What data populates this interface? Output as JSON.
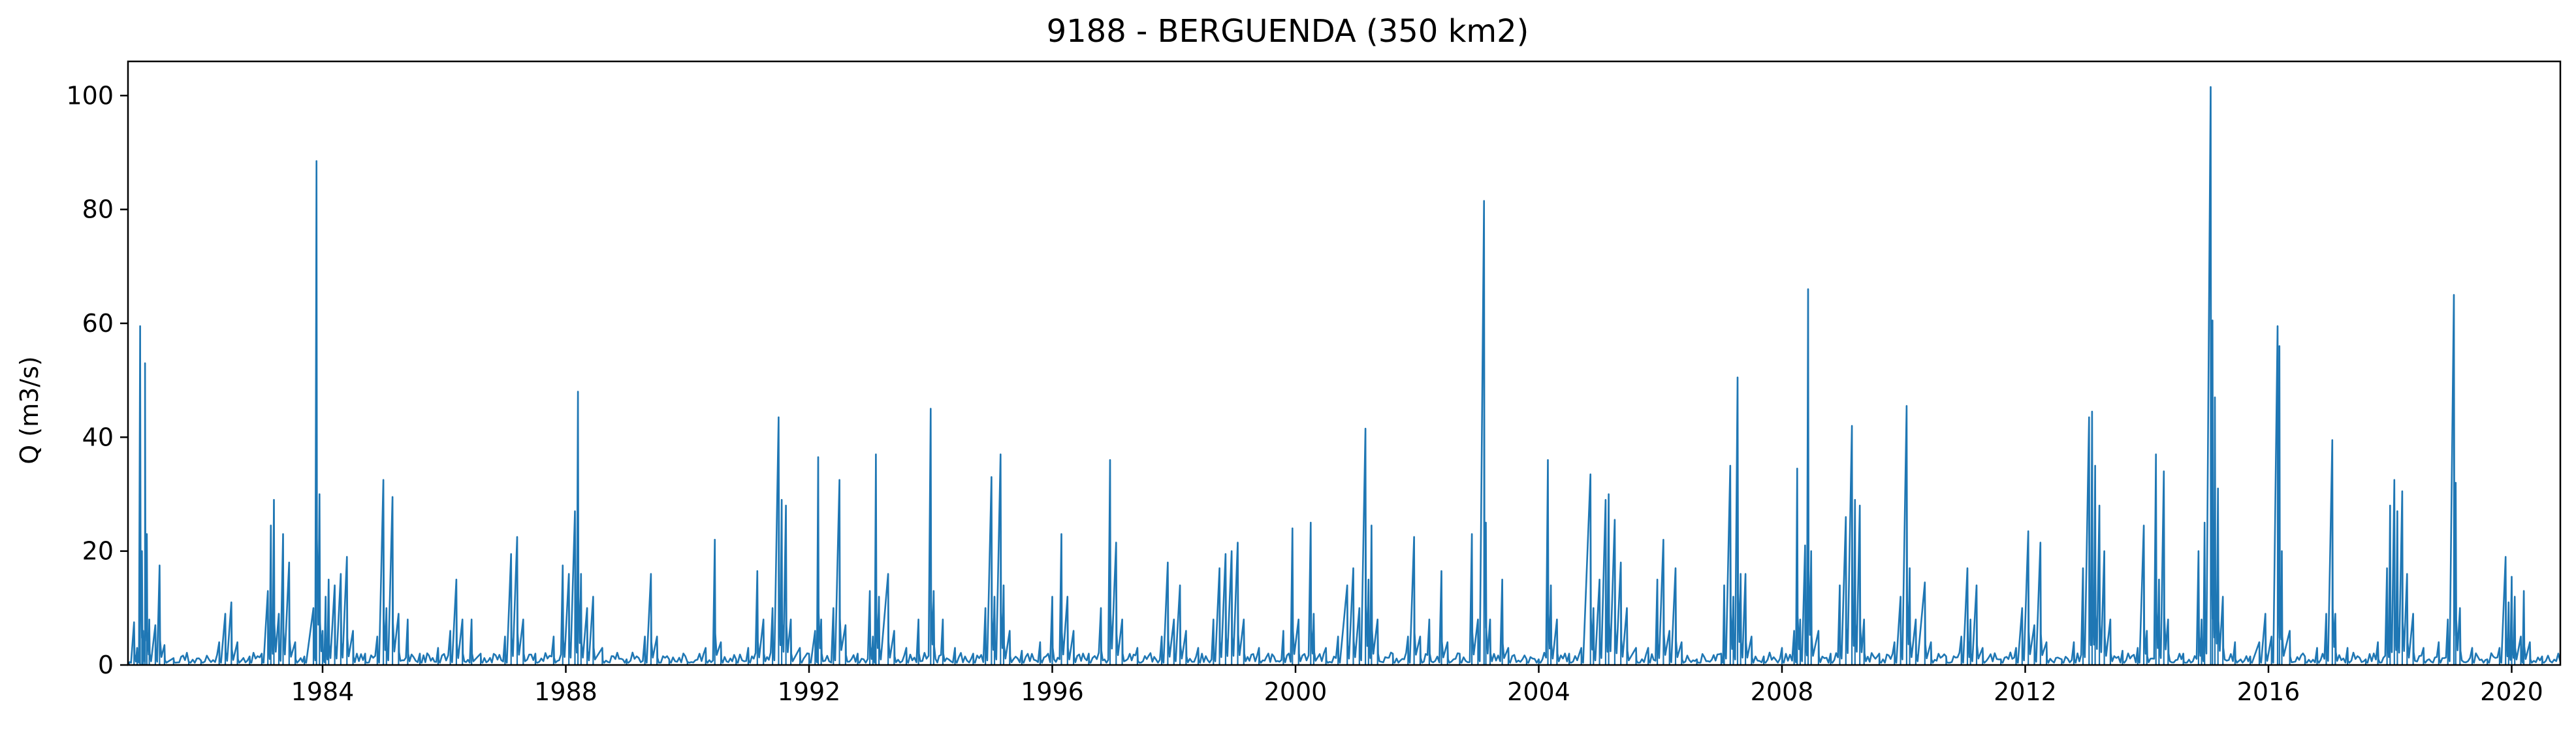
{
  "chart_data": {
    "type": "line",
    "title": "9188 - BERGUENDA (350 km2)",
    "xlabel": "",
    "ylabel": "Q (m3/s)",
    "xlim": [
      1980.8,
      2020.8
    ],
    "ylim": [
      0,
      106
    ],
    "x_ticks": [
      "1984",
      "1988",
      "1992",
      "1996",
      "2000",
      "2004",
      "2008",
      "2012",
      "2016",
      "2020"
    ],
    "y_ticks": [
      "0",
      "20",
      "40",
      "60",
      "80",
      "100"
    ],
    "series_color": "#1f77b4",
    "grid": false,
    "legend": "none",
    "series": [
      {
        "sampling": "approximate peak flows read from the hydrograph; baseflow between peaks near 0–3 m3/s",
        "points": [
          [
            1980.82,
            0.4
          ],
          [
            1980.9,
            7.5
          ],
          [
            1980.95,
            3.0
          ],
          [
            1981.0,
            59.5
          ],
          [
            1981.03,
            20.0
          ],
          [
            1981.05,
            6.0
          ],
          [
            1981.08,
            53.0
          ],
          [
            1981.11,
            23.0
          ],
          [
            1981.15,
            8.0
          ],
          [
            1981.25,
            7.0
          ],
          [
            1981.32,
            17.5
          ],
          [
            1981.4,
            3.5
          ],
          [
            1981.55,
            1.2
          ],
          [
            1981.8,
            0.5
          ],
          [
            1982.0,
            0.8
          ],
          [
            1982.3,
            4.0
          ],
          [
            1982.4,
            9.0
          ],
          [
            1982.5,
            11.0
          ],
          [
            1982.6,
            4.0
          ],
          [
            1982.8,
            1.5
          ],
          [
            1983.0,
            2.0
          ],
          [
            1983.1,
            13.0
          ],
          [
            1983.15,
            24.5
          ],
          [
            1983.2,
            29.0
          ],
          [
            1983.28,
            9.0
          ],
          [
            1983.35,
            23.0
          ],
          [
            1983.45,
            18.0
          ],
          [
            1983.55,
            4.0
          ],
          [
            1983.7,
            1.5
          ],
          [
            1983.85,
            10.0
          ],
          [
            1983.9,
            88.5
          ],
          [
            1983.95,
            30.0
          ],
          [
            1984.0,
            6.0
          ],
          [
            1984.05,
            12.0
          ],
          [
            1984.1,
            15.0
          ],
          [
            1984.2,
            14.0
          ],
          [
            1984.3,
            16.0
          ],
          [
            1984.4,
            19.0
          ],
          [
            1984.5,
            6.0
          ],
          [
            1984.7,
            2.0
          ],
          [
            1984.9,
            5.0
          ],
          [
            1985.0,
            32.5
          ],
          [
            1985.05,
            10.0
          ],
          [
            1985.15,
            29.5
          ],
          [
            1985.25,
            9.0
          ],
          [
            1985.4,
            8.0
          ],
          [
            1985.6,
            2.0
          ],
          [
            1985.9,
            3.0
          ],
          [
            1986.1,
            6.0
          ],
          [
            1986.2,
            15.0
          ],
          [
            1986.3,
            8.0
          ],
          [
            1986.45,
            8.0
          ],
          [
            1986.6,
            2.0
          ],
          [
            1987.0,
            5.0
          ],
          [
            1987.1,
            19.5
          ],
          [
            1987.2,
            22.5
          ],
          [
            1987.3,
            8.0
          ],
          [
            1987.5,
            2.0
          ],
          [
            1987.8,
            5.0
          ],
          [
            1987.95,
            17.5
          ],
          [
            1988.05,
            16.0
          ],
          [
            1988.15,
            27.0
          ],
          [
            1988.2,
            48.0
          ],
          [
            1988.25,
            16.0
          ],
          [
            1988.35,
            10.0
          ],
          [
            1988.45,
            12.0
          ],
          [
            1988.6,
            3.0
          ],
          [
            1989.0,
            1.0
          ],
          [
            1989.3,
            5.0
          ],
          [
            1989.4,
            16.0
          ],
          [
            1989.5,
            5.0
          ],
          [
            1989.7,
            1.0
          ],
          [
            1990.0,
            0.5
          ],
          [
            1990.3,
            3.0
          ],
          [
            1990.45,
            22.0
          ],
          [
            1990.55,
            4.0
          ],
          [
            1990.8,
            1.0
          ],
          [
            1991.0,
            3.0
          ],
          [
            1991.15,
            16.5
          ],
          [
            1991.25,
            8.0
          ],
          [
            1991.4,
            10.0
          ],
          [
            1991.5,
            43.5
          ],
          [
            1991.55,
            29.0
          ],
          [
            1991.62,
            28.0
          ],
          [
            1991.7,
            8.0
          ],
          [
            1991.85,
            3.0
          ],
          [
            1992.0,
            2.0
          ],
          [
            1992.1,
            6.0
          ],
          [
            1992.15,
            36.5
          ],
          [
            1992.2,
            8.0
          ],
          [
            1992.4,
            10.0
          ],
          [
            1992.5,
            32.5
          ],
          [
            1992.6,
            7.0
          ],
          [
            1992.8,
            2.0
          ],
          [
            1993.0,
            13.0
          ],
          [
            1993.05,
            5.0
          ],
          [
            1993.1,
            37.0
          ],
          [
            1993.15,
            12.0
          ],
          [
            1993.3,
            16.0
          ],
          [
            1993.4,
            6.0
          ],
          [
            1993.6,
            3.0
          ],
          [
            1993.8,
            8.0
          ],
          [
            1994.0,
            45.0
          ],
          [
            1994.05,
            13.0
          ],
          [
            1994.2,
            8.0
          ],
          [
            1994.4,
            3.0
          ],
          [
            1994.7,
            2.0
          ],
          [
            1994.9,
            10.0
          ],
          [
            1995.0,
            33.0
          ],
          [
            1995.05,
            12.0
          ],
          [
            1995.15,
            37.0
          ],
          [
            1995.2,
            14.0
          ],
          [
            1995.3,
            6.0
          ],
          [
            1995.5,
            2.5
          ],
          [
            1995.8,
            4.0
          ],
          [
            1996.0,
            12.0
          ],
          [
            1996.15,
            23.0
          ],
          [
            1996.25,
            12.0
          ],
          [
            1996.35,
            6.0
          ],
          [
            1996.6,
            2.0
          ],
          [
            1996.8,
            10.0
          ],
          [
            1996.95,
            36.0
          ],
          [
            1997.05,
            21.5
          ],
          [
            1997.15,
            8.0
          ],
          [
            1997.4,
            3.0
          ],
          [
            1997.8,
            5.0
          ],
          [
            1997.9,
            18.0
          ],
          [
            1998.0,
            8.0
          ],
          [
            1998.1,
            14.0
          ],
          [
            1998.2,
            6.0
          ],
          [
            1998.4,
            3.0
          ],
          [
            1998.65,
            8.0
          ],
          [
            1998.75,
            17.0
          ],
          [
            1998.85,
            19.5
          ],
          [
            1998.95,
            20.0
          ],
          [
            1999.05,
            21.5
          ],
          [
            1999.15,
            8.0
          ],
          [
            1999.4,
            3.0
          ],
          [
            1999.8,
            6.0
          ],
          [
            1999.95,
            24.0
          ],
          [
            2000.05,
            8.0
          ],
          [
            2000.25,
            25.0
          ],
          [
            2000.3,
            9.0
          ],
          [
            2000.5,
            3.0
          ],
          [
            2000.7,
            5.0
          ],
          [
            2000.85,
            14.0
          ],
          [
            2000.95,
            17.0
          ],
          [
            2001.05,
            10.0
          ],
          [
            2001.15,
            41.5
          ],
          [
            2001.2,
            15.0
          ],
          [
            2001.25,
            24.5
          ],
          [
            2001.35,
            8.0
          ],
          [
            2001.6,
            2.0
          ],
          [
            2001.85,
            5.0
          ],
          [
            2001.95,
            22.5
          ],
          [
            2002.05,
            5.0
          ],
          [
            2002.2,
            8.0
          ],
          [
            2002.4,
            16.5
          ],
          [
            2002.5,
            4.0
          ],
          [
            2002.7,
            2.0
          ],
          [
            2002.9,
            23.0
          ],
          [
            2003.0,
            8.0
          ],
          [
            2003.1,
            81.5
          ],
          [
            2003.13,
            25.0
          ],
          [
            2003.2,
            8.0
          ],
          [
            2003.4,
            15.0
          ],
          [
            2003.5,
            3.0
          ],
          [
            2003.8,
            1.0
          ],
          [
            2004.0,
            1.0
          ],
          [
            2004.15,
            36.0
          ],
          [
            2004.2,
            14.0
          ],
          [
            2004.3,
            8.0
          ],
          [
            2004.5,
            2.0
          ],
          [
            2004.7,
            3.0
          ],
          [
            2004.85,
            33.5
          ],
          [
            2004.9,
            10.0
          ],
          [
            2005.0,
            15.0
          ],
          [
            2005.1,
            29.0
          ],
          [
            2005.15,
            30.0
          ],
          [
            2005.25,
            25.5
          ],
          [
            2005.35,
            18.0
          ],
          [
            2005.45,
            10.0
          ],
          [
            2005.6,
            3.0
          ],
          [
            2005.8,
            3.0
          ],
          [
            2005.95,
            15.0
          ],
          [
            2006.05,
            22.0
          ],
          [
            2006.15,
            6.0
          ],
          [
            2006.25,
            17.0
          ],
          [
            2006.35,
            4.0
          ],
          [
            2006.6,
            1.0
          ],
          [
            2007.0,
            2.0
          ],
          [
            2007.05,
            14.0
          ],
          [
            2007.15,
            35.0
          ],
          [
            2007.2,
            12.0
          ],
          [
            2007.27,
            50.5
          ],
          [
            2007.32,
            16.0
          ],
          [
            2007.4,
            16.0
          ],
          [
            2007.5,
            5.0
          ],
          [
            2007.7,
            1.5
          ],
          [
            2008.0,
            3.0
          ],
          [
            2008.2,
            6.0
          ],
          [
            2008.25,
            34.5
          ],
          [
            2008.3,
            8.0
          ],
          [
            2008.38,
            21.0
          ],
          [
            2008.43,
            66.0
          ],
          [
            2008.48,
            20.0
          ],
          [
            2008.6,
            6.0
          ],
          [
            2008.8,
            2.0
          ],
          [
            2008.95,
            14.0
          ],
          [
            2009.05,
            26.0
          ],
          [
            2009.15,
            42.0
          ],
          [
            2009.2,
            29.0
          ],
          [
            2009.28,
            28.0
          ],
          [
            2009.35,
            8.0
          ],
          [
            2009.6,
            2.0
          ],
          [
            2009.85,
            4.0
          ],
          [
            2009.95,
            12.0
          ],
          [
            2010.05,
            45.5
          ],
          [
            2010.1,
            17.0
          ],
          [
            2010.2,
            8.0
          ],
          [
            2010.35,
            14.5
          ],
          [
            2010.45,
            4.0
          ],
          [
            2010.7,
            1.5
          ],
          [
            2010.95,
            5.0
          ],
          [
            2011.05,
            17.0
          ],
          [
            2011.1,
            8.0
          ],
          [
            2011.2,
            14.0
          ],
          [
            2011.3,
            3.0
          ],
          [
            2011.6,
            1.0
          ],
          [
            2011.85,
            3.0
          ],
          [
            2011.95,
            10.0
          ],
          [
            2012.05,
            23.5
          ],
          [
            2012.15,
            7.0
          ],
          [
            2012.25,
            21.5
          ],
          [
            2012.35,
            4.0
          ],
          [
            2012.6,
            1.0
          ],
          [
            2012.8,
            4.0
          ],
          [
            2012.95,
            17.0
          ],
          [
            2013.05,
            43.5
          ],
          [
            2013.1,
            44.5
          ],
          [
            2013.15,
            35.0
          ],
          [
            2013.22,
            28.0
          ],
          [
            2013.3,
            20.0
          ],
          [
            2013.4,
            8.0
          ],
          [
            2013.6,
            2.5
          ],
          [
            2013.85,
            3.0
          ],
          [
            2013.95,
            24.5
          ],
          [
            2014.0,
            6.0
          ],
          [
            2014.15,
            37.0
          ],
          [
            2014.2,
            15.0
          ],
          [
            2014.28,
            34.0
          ],
          [
            2014.35,
            8.0
          ],
          [
            2014.6,
            2.0
          ],
          [
            2014.85,
            20.0
          ],
          [
            2014.9,
            8.0
          ],
          [
            2014.95,
            25.0
          ],
          [
            2015.05,
            101.5
          ],
          [
            2015.08,
            60.5
          ],
          [
            2015.12,
            47.0
          ],
          [
            2015.17,
            31.0
          ],
          [
            2015.25,
            12.0
          ],
          [
            2015.45,
            4.0
          ],
          [
            2015.7,
            1.5
          ],
          [
            2015.85,
            4.0
          ],
          [
            2015.95,
            9.0
          ],
          [
            2016.05,
            5.0
          ],
          [
            2016.15,
            59.5
          ],
          [
            2016.18,
            56.0
          ],
          [
            2016.22,
            20.0
          ],
          [
            2016.35,
            6.0
          ],
          [
            2016.6,
            1.5
          ],
          [
            2016.8,
            3.0
          ],
          [
            2016.95,
            9.0
          ],
          [
            2017.05,
            39.5
          ],
          [
            2017.1,
            9.0
          ],
          [
            2017.3,
            3.0
          ],
          [
            2017.6,
            1.0
          ],
          [
            2017.8,
            4.0
          ],
          [
            2017.95,
            17.0
          ],
          [
            2018.0,
            28.0
          ],
          [
            2018.07,
            32.5
          ],
          [
            2018.12,
            27.0
          ],
          [
            2018.2,
            30.5
          ],
          [
            2018.28,
            16.0
          ],
          [
            2018.38,
            9.0
          ],
          [
            2018.55,
            3.0
          ],
          [
            2018.8,
            4.0
          ],
          [
            2018.95,
            8.0
          ],
          [
            2019.05,
            65.0
          ],
          [
            2019.08,
            32.0
          ],
          [
            2019.15,
            10.0
          ],
          [
            2019.35,
            3.0
          ],
          [
            2019.6,
            1.0
          ],
          [
            2019.8,
            3.0
          ],
          [
            2019.9,
            19.0
          ],
          [
            2019.95,
            11.0
          ],
          [
            2020.0,
            15.5
          ],
          [
            2020.05,
            12.0
          ],
          [
            2020.15,
            5.0
          ],
          [
            2020.2,
            13.0
          ],
          [
            2020.3,
            4.0
          ],
          [
            2020.5,
            1.5
          ],
          [
            2020.8,
            0.5
          ]
        ]
      }
    ]
  }
}
